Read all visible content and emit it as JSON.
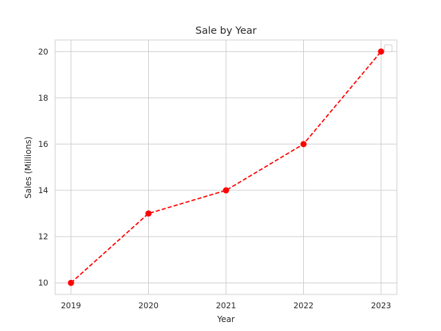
{
  "colors": {
    "line": "#ff0000",
    "marker": "#ff0000",
    "grid": "#cccccc",
    "text": "#262626",
    "background": "#ffffff"
  },
  "chart_data": {
    "type": "line",
    "title": "Sale by Year",
    "xlabel": "Year",
    "ylabel": "Sales (Millions)",
    "x": [
      "2019",
      "2020",
      "2021",
      "2022",
      "2023"
    ],
    "series": [
      {
        "values": [
          10,
          13,
          14,
          16,
          20
        ],
        "line_style": "dashed",
        "marker": "circle"
      }
    ],
    "ylim": [
      9.5,
      20.5
    ],
    "yticks": [
      "10",
      "12",
      "14",
      "16",
      "18",
      "20"
    ],
    "grid": true,
    "legend": {
      "placement": "top-right",
      "entries": []
    }
  }
}
